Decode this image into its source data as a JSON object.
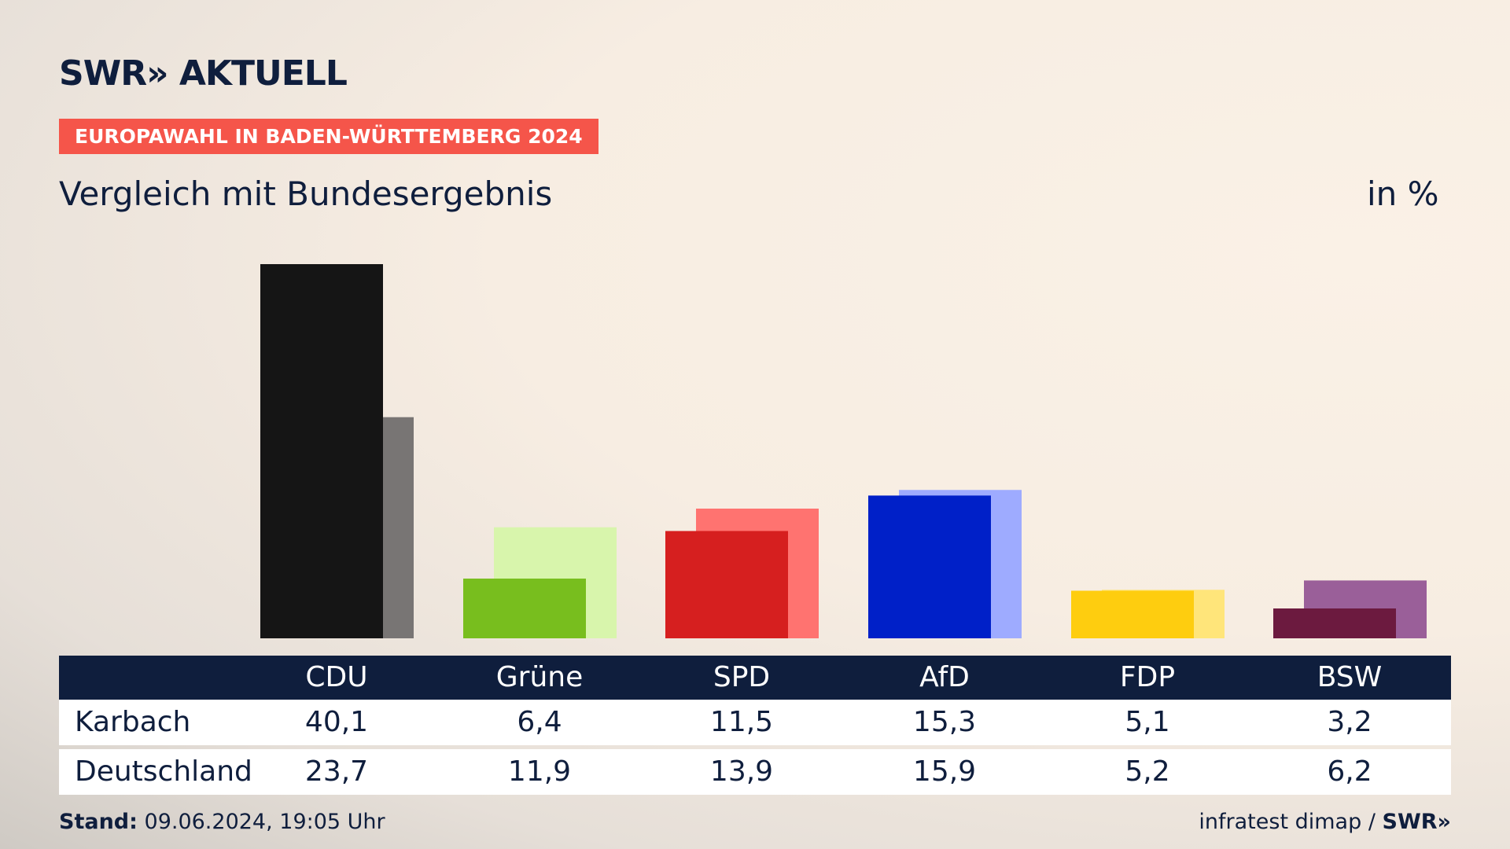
{
  "header": {
    "logo": "SWR» AKTUELL",
    "tag": "EUROPAWAHL IN BADEN-WÜRTTEMBERG 2024",
    "subtitle": "Vergleich mit Bundesergebnis",
    "unit": "in %"
  },
  "footer": {
    "stand_label": "Stand:",
    "stand_value": "09.06.2024, 19:05 Uhr",
    "source": "infratest dimap /",
    "source_logo": "SWR»"
  },
  "table": {
    "row_labels": [
      "Karbach",
      "Deutschland"
    ],
    "parties": [
      "CDU",
      "Grüne",
      "SPD",
      "AfD",
      "FDP",
      "BSW"
    ],
    "karbach": [
      "40,1",
      "6,4",
      "11,5",
      "15,3",
      "5,1",
      "3,2"
    ],
    "deutschland": [
      "23,7",
      "11,9",
      "13,9",
      "15,9",
      "5,2",
      "6,2"
    ]
  },
  "chart_data": {
    "type": "bar",
    "categories": [
      "CDU",
      "Grüne",
      "SPD",
      "AfD",
      "FDP",
      "BSW"
    ],
    "series": [
      {
        "name": "Karbach",
        "values": [
          40.1,
          6.4,
          11.5,
          15.3,
          5.1,
          3.2
        ],
        "colors": [
          "#151515",
          "#78be1e",
          "#d61f1f",
          "#0020c8",
          "#fecd0f",
          "#6c1a3f"
        ]
      },
      {
        "name": "Deutschland",
        "values": [
          23.7,
          11.9,
          13.9,
          15.9,
          5.2,
          6.2
        ],
        "colors": [
          "#787574",
          "#d8f5ac",
          "#ff7370",
          "#9eabff",
          "#ffe57a",
          "#9a5f99"
        ]
      }
    ],
    "ylim": [
      0,
      40.1
    ]
  }
}
